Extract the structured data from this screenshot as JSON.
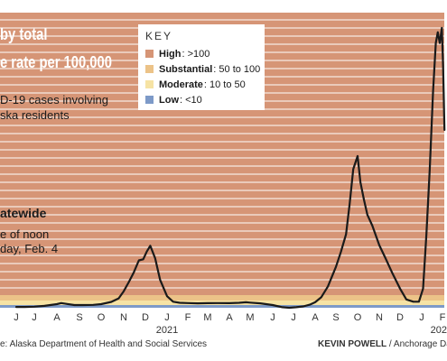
{
  "title_lines": [
    "by total",
    "e rate per 100,000"
  ],
  "subtitle_lines": [
    "D-19 cases involving",
    "ska residents"
  ],
  "area_title": "atewide",
  "as_of_lines": [
    "e of noon",
    "day, Feb. 4"
  ],
  "legend": {
    "title": "KEY",
    "items": [
      {
        "name": "High",
        "range": ": >100",
        "color": "#d69576"
      },
      {
        "name": "Substantial",
        "range": ": 50 to 100",
        "color": "#ecc388"
      },
      {
        "name": "Moderate",
        "range": ": 10 to 50",
        "color": "#f6e3a4"
      },
      {
        "name": "Low",
        "range": ": <10",
        "color": "#7d9ac8"
      }
    ]
  },
  "footer": {
    "source": "e: Alaska Department of Health and Social Services",
    "credit_name": "KEVIN POWELL",
    "credit_rest": " / Anchorage Daily"
  },
  "chart_data": {
    "type": "line",
    "title": "",
    "xlabel": "",
    "ylabel": "",
    "x_ticks": [
      "J",
      "J",
      "A",
      "S",
      "O",
      "N",
      "D",
      "J",
      "F",
      "M",
      "A",
      "M",
      "J",
      "J",
      "A",
      "S",
      "O",
      "N",
      "D",
      "J",
      "F"
    ],
    "year_labels": [
      {
        "label": "2021",
        "at_tick": 7
      },
      {
        "label": "202",
        "at_tick": 19
      }
    ],
    "x": [
      "2020-06-01",
      "2020-06-15",
      "2020-07-01",
      "2020-07-15",
      "2020-08-01",
      "2020-08-07",
      "2020-08-15",
      "2020-08-25",
      "2020-09-05",
      "2020-09-20",
      "2020-10-01",
      "2020-10-15",
      "2020-10-25",
      "2020-11-01",
      "2020-11-08",
      "2020-11-15",
      "2020-11-22",
      "2020-11-28",
      "2020-12-03",
      "2020-12-08",
      "2020-12-15",
      "2020-12-22",
      "2021-01-01",
      "2021-01-10",
      "2021-01-20",
      "2021-02-01",
      "2021-02-15",
      "2021-03-01",
      "2021-03-15",
      "2021-04-01",
      "2021-04-15",
      "2021-04-25",
      "2021-05-01",
      "2021-05-15",
      "2021-06-01",
      "2021-06-15",
      "2021-06-25",
      "2021-07-05",
      "2021-07-15",
      "2021-07-25",
      "2021-08-01",
      "2021-08-10",
      "2021-08-20",
      "2021-09-01",
      "2021-09-08",
      "2021-09-15",
      "2021-09-20",
      "2021-09-25",
      "2021-10-01",
      "2021-10-05",
      "2021-10-10",
      "2021-10-15",
      "2021-10-22",
      "2021-11-01",
      "2021-11-10",
      "2021-11-20",
      "2021-12-01",
      "2021-12-10",
      "2021-12-20",
      "2021-12-28",
      "2022-01-03",
      "2022-01-08",
      "2022-01-13",
      "2022-01-18",
      "2022-01-22",
      "2022-01-25",
      "2022-01-28",
      "2022-01-31",
      "2022-02-02",
      "2022-02-04"
    ],
    "series": [
      {
        "values": [
          3,
          3,
          4,
          7,
          18,
          28,
          20,
          10,
          10,
          12,
          18,
          38,
          70,
          118,
          160,
          205,
          260,
          265,
          300,
          327,
          270,
          170,
          90,
          40,
          30,
          28,
          25,
          27,
          28,
          27,
          30,
          35,
          32,
          25,
          10,
          2,
          0,
          2,
          5,
          15,
          35,
          80,
          140,
          230,
          300,
          380,
          520,
          680,
          740,
          620,
          540,
          470,
          420,
          330,
          270,
          200,
          130,
          60,
          40,
          40,
          130,
          380,
          680,
          1040,
          1260,
          1310,
          1260,
          1330,
          1150,
          860
        ]
      }
    ],
    "ylim": [
      0,
      1400
    ],
    "color_bands": [
      {
        "name": "High",
        "from": 100,
        "to": 1400,
        "color": "#d69576"
      },
      {
        "name": "Substantial",
        "from": 50,
        "to": 100,
        "color": "#ecc388"
      },
      {
        "name": "Moderate",
        "from": 10,
        "to": 50,
        "color": "#f6e3a4"
      },
      {
        "name": "Low",
        "from": 0,
        "to": 10,
        "color": "#7d9ac8"
      }
    ],
    "grid": true
  }
}
